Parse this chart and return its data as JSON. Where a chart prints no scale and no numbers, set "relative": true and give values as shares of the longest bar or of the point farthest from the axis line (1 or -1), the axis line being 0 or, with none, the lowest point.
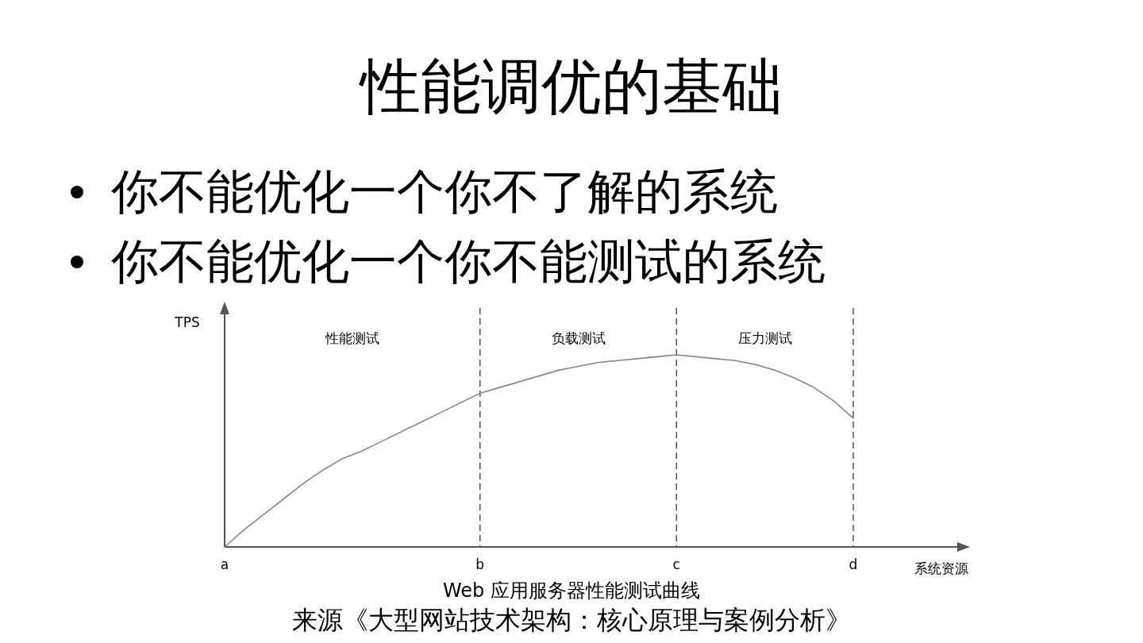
{
  "chart_data": {
    "type": "line",
    "relative": true,
    "title": "性能调优的基础",
    "annotations": [
      "你不能优化一个你不了解的系统",
      "你不能优化一个你不能测试的系统",
      "性能测试",
      "负载测试",
      "压力测试",
      "Web 应用服务器性能测试曲线",
      "来源《大型网站技术架构：核心原理与案例分析》"
    ],
    "ylabel": "TPS",
    "xlabel": "系统资源",
    "categories": [
      "a",
      null,
      null,
      null,
      null,
      null,
      null,
      null,
      null,
      null,
      null,
      null,
      null,
      "b",
      null,
      null,
      null,
      null,
      null,
      null,
      null,
      null,
      null,
      "c",
      null,
      null,
      null,
      null,
      null,
      null,
      null,
      null,
      "d"
    ],
    "series": [
      {
        "color": "#888888",
        "values": [
          0,
          0.09,
          0.17,
          0.25,
          0.33,
          0.4,
          0.46,
          0.5,
          0.55,
          0.6,
          0.65,
          0.7,
          0.75,
          0.8,
          0.83,
          0.86,
          0.89,
          0.92,
          0.94,
          0.96,
          0.97,
          0.98,
          0.99,
          1.0,
          0.99,
          0.98,
          0.97,
          0.95,
          0.92,
          0.88,
          0.83,
          0.76,
          0.67
        ]
      }
    ],
    "ref_lines": [
      {
        "axis": "x",
        "value": "b",
        "line_style": "dashed",
        "color": "#555555"
      },
      {
        "axis": "x",
        "value": "c",
        "line_style": "dashed",
        "color": "#555555"
      },
      {
        "axis": "x",
        "value": "d",
        "line_style": "dashed",
        "color": "#555555"
      }
    ],
    "marker": "none",
    "line_style": "solid"
  }
}
